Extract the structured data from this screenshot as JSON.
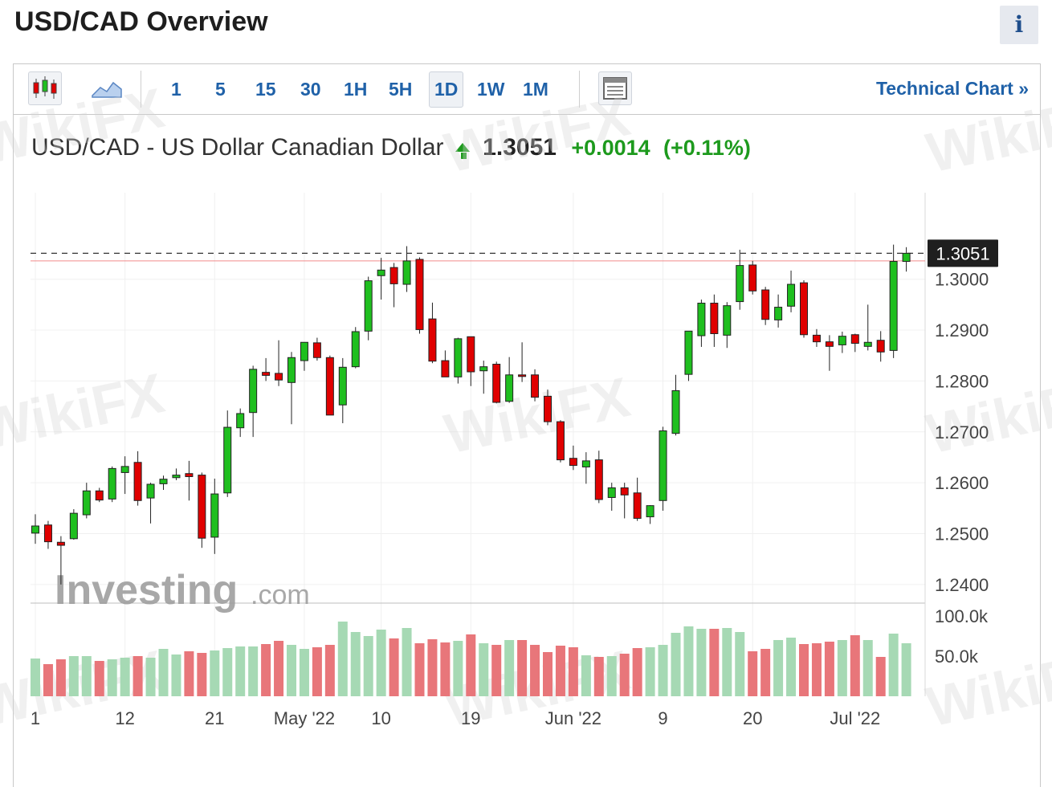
{
  "page": {
    "title": "USD/CAD Overview",
    "info_label": "i"
  },
  "toolbar": {
    "timeframes": [
      "1",
      "5",
      "15",
      "30",
      "1H",
      "5H",
      "1D",
      "1W",
      "1M"
    ],
    "active_timeframe": "1D",
    "chart_type_icon": "candlestick-icon",
    "line_icon": "area-chart-icon",
    "layout_icon": "table-view-icon",
    "technical_link": "Technical Chart »"
  },
  "quote": {
    "name": "USD/CAD - US Dollar Canadian Dollar",
    "direction_icon": "up-arrow-icon",
    "last": "1.3051",
    "change": "+0.0014",
    "change_pct": "(+0.11%)",
    "up_color": "#1d9a1d"
  },
  "watermarks": {
    "brand": "Investing",
    "suffix": ".com",
    "overlay": "WikiFX"
  },
  "chart_data": {
    "type": "candlestick",
    "price_axis": {
      "ylim": [
        1.2365,
        1.317
      ],
      "ticks": [
        "1.3000",
        "1.2900",
        "1.2800",
        "1.2700",
        "1.2600",
        "1.2500",
        "1.2400"
      ],
      "tick_values": [
        1.3,
        1.29,
        1.28,
        1.27,
        1.26,
        1.25,
        1.24
      ]
    },
    "last_price_label": "1.3051",
    "last_price": 1.3051,
    "reference_line": 1.3036,
    "volume_axis": {
      "ylim": [
        0,
        115000
      ],
      "ticks": [
        "100.0k",
        "50.0k"
      ],
      "tick_values": [
        100000,
        50000
      ]
    },
    "x_tick_labels": [
      "1",
      "12",
      "21",
      "May '22",
      "10",
      "19",
      "Jun '22",
      "9",
      "20",
      "Jul '22"
    ],
    "x_tick_index": [
      0,
      7,
      14,
      21,
      27,
      34,
      42,
      49,
      56,
      64
    ],
    "colors": {
      "up": "#1fbf1f",
      "down": "#e00000",
      "vol_up": "#a6d9b4",
      "vol_down": "#e8767a"
    },
    "candles": [
      {
        "o": 1.2501,
        "h": 1.2538,
        "l": 1.248,
        "c": 1.2515
      },
      {
        "o": 1.2517,
        "h": 1.2525,
        "l": 1.247,
        "c": 1.2484
      },
      {
        "o": 1.2483,
        "h": 1.2495,
        "l": 1.24,
        "c": 1.2477
      },
      {
        "o": 1.249,
        "h": 1.2548,
        "l": 1.2488,
        "c": 1.254
      },
      {
        "o": 1.2537,
        "h": 1.26,
        "l": 1.253,
        "c": 1.2584
      },
      {
        "o": 1.2584,
        "h": 1.259,
        "l": 1.2562,
        "c": 1.2566
      },
      {
        "o": 1.2568,
        "h": 1.2632,
        "l": 1.2562,
        "c": 1.2628
      },
      {
        "o": 1.262,
        "h": 1.2652,
        "l": 1.2578,
        "c": 1.2632
      },
      {
        "o": 1.264,
        "h": 1.2662,
        "l": 1.2555,
        "c": 1.2565
      },
      {
        "o": 1.257,
        "h": 1.26,
        "l": 1.252,
        "c": 1.2597
      },
      {
        "o": 1.2598,
        "h": 1.2614,
        "l": 1.2586,
        "c": 1.2607
      },
      {
        "o": 1.261,
        "h": 1.2628,
        "l": 1.2605,
        "c": 1.2615
      },
      {
        "o": 1.2618,
        "h": 1.2643,
        "l": 1.2565,
        "c": 1.2612
      },
      {
        "o": 1.2615,
        "h": 1.262,
        "l": 1.2472,
        "c": 1.2491
      },
      {
        "o": 1.2493,
        "h": 1.2608,
        "l": 1.246,
        "c": 1.2578
      },
      {
        "o": 1.258,
        "h": 1.2742,
        "l": 1.2572,
        "c": 1.2709
      },
      {
        "o": 1.2708,
        "h": 1.2746,
        "l": 1.269,
        "c": 1.2736
      },
      {
        "o": 1.2738,
        "h": 1.283,
        "l": 1.269,
        "c": 1.2823
      },
      {
        "o": 1.2817,
        "h": 1.2845,
        "l": 1.28,
        "c": 1.2811
      },
      {
        "o": 1.2815,
        "h": 1.288,
        "l": 1.279,
        "c": 1.2802
      },
      {
        "o": 1.2797,
        "h": 1.2857,
        "l": 1.2715,
        "c": 1.2846
      },
      {
        "o": 1.284,
        "h": 1.2872,
        "l": 1.282,
        "c": 1.2876
      },
      {
        "o": 1.2875,
        "h": 1.2885,
        "l": 1.284,
        "c": 1.2846
      },
      {
        "o": 1.2846,
        "h": 1.285,
        "l": 1.2735,
        "c": 1.2733
      },
      {
        "o": 1.2753,
        "h": 1.2845,
        "l": 1.2717,
        "c": 1.2827
      },
      {
        "o": 1.2828,
        "h": 1.2906,
        "l": 1.2825,
        "c": 1.2897
      },
      {
        "o": 1.2898,
        "h": 1.3005,
        "l": 1.288,
        "c": 1.2997
      },
      {
        "o": 1.3007,
        "h": 1.3042,
        "l": 1.296,
        "c": 1.3018
      },
      {
        "o": 1.3023,
        "h": 1.3032,
        "l": 1.2945,
        "c": 1.2991
      },
      {
        "o": 1.299,
        "h": 1.3065,
        "l": 1.2975,
        "c": 1.3036
      },
      {
        "o": 1.3039,
        "h": 1.3043,
        "l": 1.2893,
        "c": 1.2901
      },
      {
        "o": 1.2922,
        "h": 1.2954,
        "l": 1.2835,
        "c": 1.2839
      },
      {
        "o": 1.284,
        "h": 1.286,
        "l": 1.2808,
        "c": 1.2808
      },
      {
        "o": 1.2808,
        "h": 1.2885,
        "l": 1.2795,
        "c": 1.2883
      },
      {
        "o": 1.2887,
        "h": 1.2887,
        "l": 1.279,
        "c": 1.2818
      },
      {
        "o": 1.282,
        "h": 1.284,
        "l": 1.2775,
        "c": 1.2828
      },
      {
        "o": 1.2833,
        "h": 1.2838,
        "l": 1.2756,
        "c": 1.2758
      },
      {
        "o": 1.276,
        "h": 1.2847,
        "l": 1.2757,
        "c": 1.2812
      },
      {
        "o": 1.2812,
        "h": 1.2876,
        "l": 1.2798,
        "c": 1.2809
      },
      {
        "o": 1.2812,
        "h": 1.2823,
        "l": 1.276,
        "c": 1.2768
      },
      {
        "o": 1.277,
        "h": 1.2783,
        "l": 1.2713,
        "c": 1.272
      },
      {
        "o": 1.272,
        "h": 1.2723,
        "l": 1.264,
        "c": 1.2645
      },
      {
        "o": 1.2648,
        "h": 1.2673,
        "l": 1.2625,
        "c": 1.2634
      },
      {
        "o": 1.2631,
        "h": 1.266,
        "l": 1.2598,
        "c": 1.2643
      },
      {
        "o": 1.2645,
        "h": 1.2663,
        "l": 1.256,
        "c": 1.2567
      },
      {
        "o": 1.2571,
        "h": 1.26,
        "l": 1.2545,
        "c": 1.259
      },
      {
        "o": 1.259,
        "h": 1.26,
        "l": 1.253,
        "c": 1.2576
      },
      {
        "o": 1.258,
        "h": 1.261,
        "l": 1.2525,
        "c": 1.253
      },
      {
        "o": 1.2533,
        "h": 1.2556,
        "l": 1.2519,
        "c": 1.2555
      },
      {
        "o": 1.2565,
        "h": 1.271,
        "l": 1.2545,
        "c": 1.2702
      },
      {
        "o": 1.2697,
        "h": 1.2812,
        "l": 1.2693,
        "c": 1.2781
      },
      {
        "o": 1.2813,
        "h": 1.2898,
        "l": 1.28,
        "c": 1.2898
      },
      {
        "o": 1.2889,
        "h": 1.296,
        "l": 1.2867,
        "c": 1.2953
      },
      {
        "o": 1.2953,
        "h": 1.297,
        "l": 1.2867,
        "c": 1.2893
      },
      {
        "o": 1.289,
        "h": 1.2955,
        "l": 1.2865,
        "c": 1.2948
      },
      {
        "o": 1.2956,
        "h": 1.3058,
        "l": 1.294,
        "c": 1.3027
      },
      {
        "o": 1.3028,
        "h": 1.3036,
        "l": 1.297,
        "c": 1.2977
      },
      {
        "o": 1.2979,
        "h": 1.2985,
        "l": 1.291,
        "c": 1.2921
      },
      {
        "o": 1.292,
        "h": 1.297,
        "l": 1.2905,
        "c": 1.2945
      },
      {
        "o": 1.2947,
        "h": 1.3017,
        "l": 1.2935,
        "c": 1.299
      },
      {
        "o": 1.2993,
        "h": 1.2998,
        "l": 1.2885,
        "c": 1.2891
      },
      {
        "o": 1.289,
        "h": 1.2902,
        "l": 1.2867,
        "c": 1.2877
      },
      {
        "o": 1.2877,
        "h": 1.289,
        "l": 1.282,
        "c": 1.2868
      },
      {
        "o": 1.2871,
        "h": 1.2897,
        "l": 1.2855,
        "c": 1.2888
      },
      {
        "o": 1.2891,
        "h": 1.2893,
        "l": 1.2857,
        "c": 1.2874
      },
      {
        "o": 1.2868,
        "h": 1.295,
        "l": 1.286,
        "c": 1.2876
      },
      {
        "o": 1.288,
        "h": 1.2898,
        "l": 1.2838,
        "c": 1.2857
      },
      {
        "o": 1.286,
        "h": 1.3068,
        "l": 1.2845,
        "c": 1.3035
      },
      {
        "o": 1.3035,
        "h": 1.3063,
        "l": 1.3015,
        "c": 1.3051
      }
    ],
    "volume": [
      47000,
      40000,
      46000,
      50000,
      50000,
      44000,
      46000,
      48000,
      50000,
      48000,
      59000,
      52000,
      56000,
      54000,
      57000,
      60000,
      62000,
      62000,
      65000,
      69000,
      64000,
      59000,
      61000,
      64000,
      93000,
      80000,
      75000,
      83000,
      72000,
      85000,
      66000,
      71000,
      67000,
      69000,
      77000,
      66000,
      64000,
      70000,
      70000,
      64000,
      55000,
      63000,
      61000,
      51000,
      49000,
      50000,
      53000,
      60000,
      61000,
      64000,
      79000,
      87000,
      84000,
      84000,
      85000,
      80000,
      56000,
      59000,
      70000,
      73000,
      65000,
      66000,
      68000,
      70000,
      76000,
      70000,
      49000,
      78000,
      66000
    ]
  }
}
